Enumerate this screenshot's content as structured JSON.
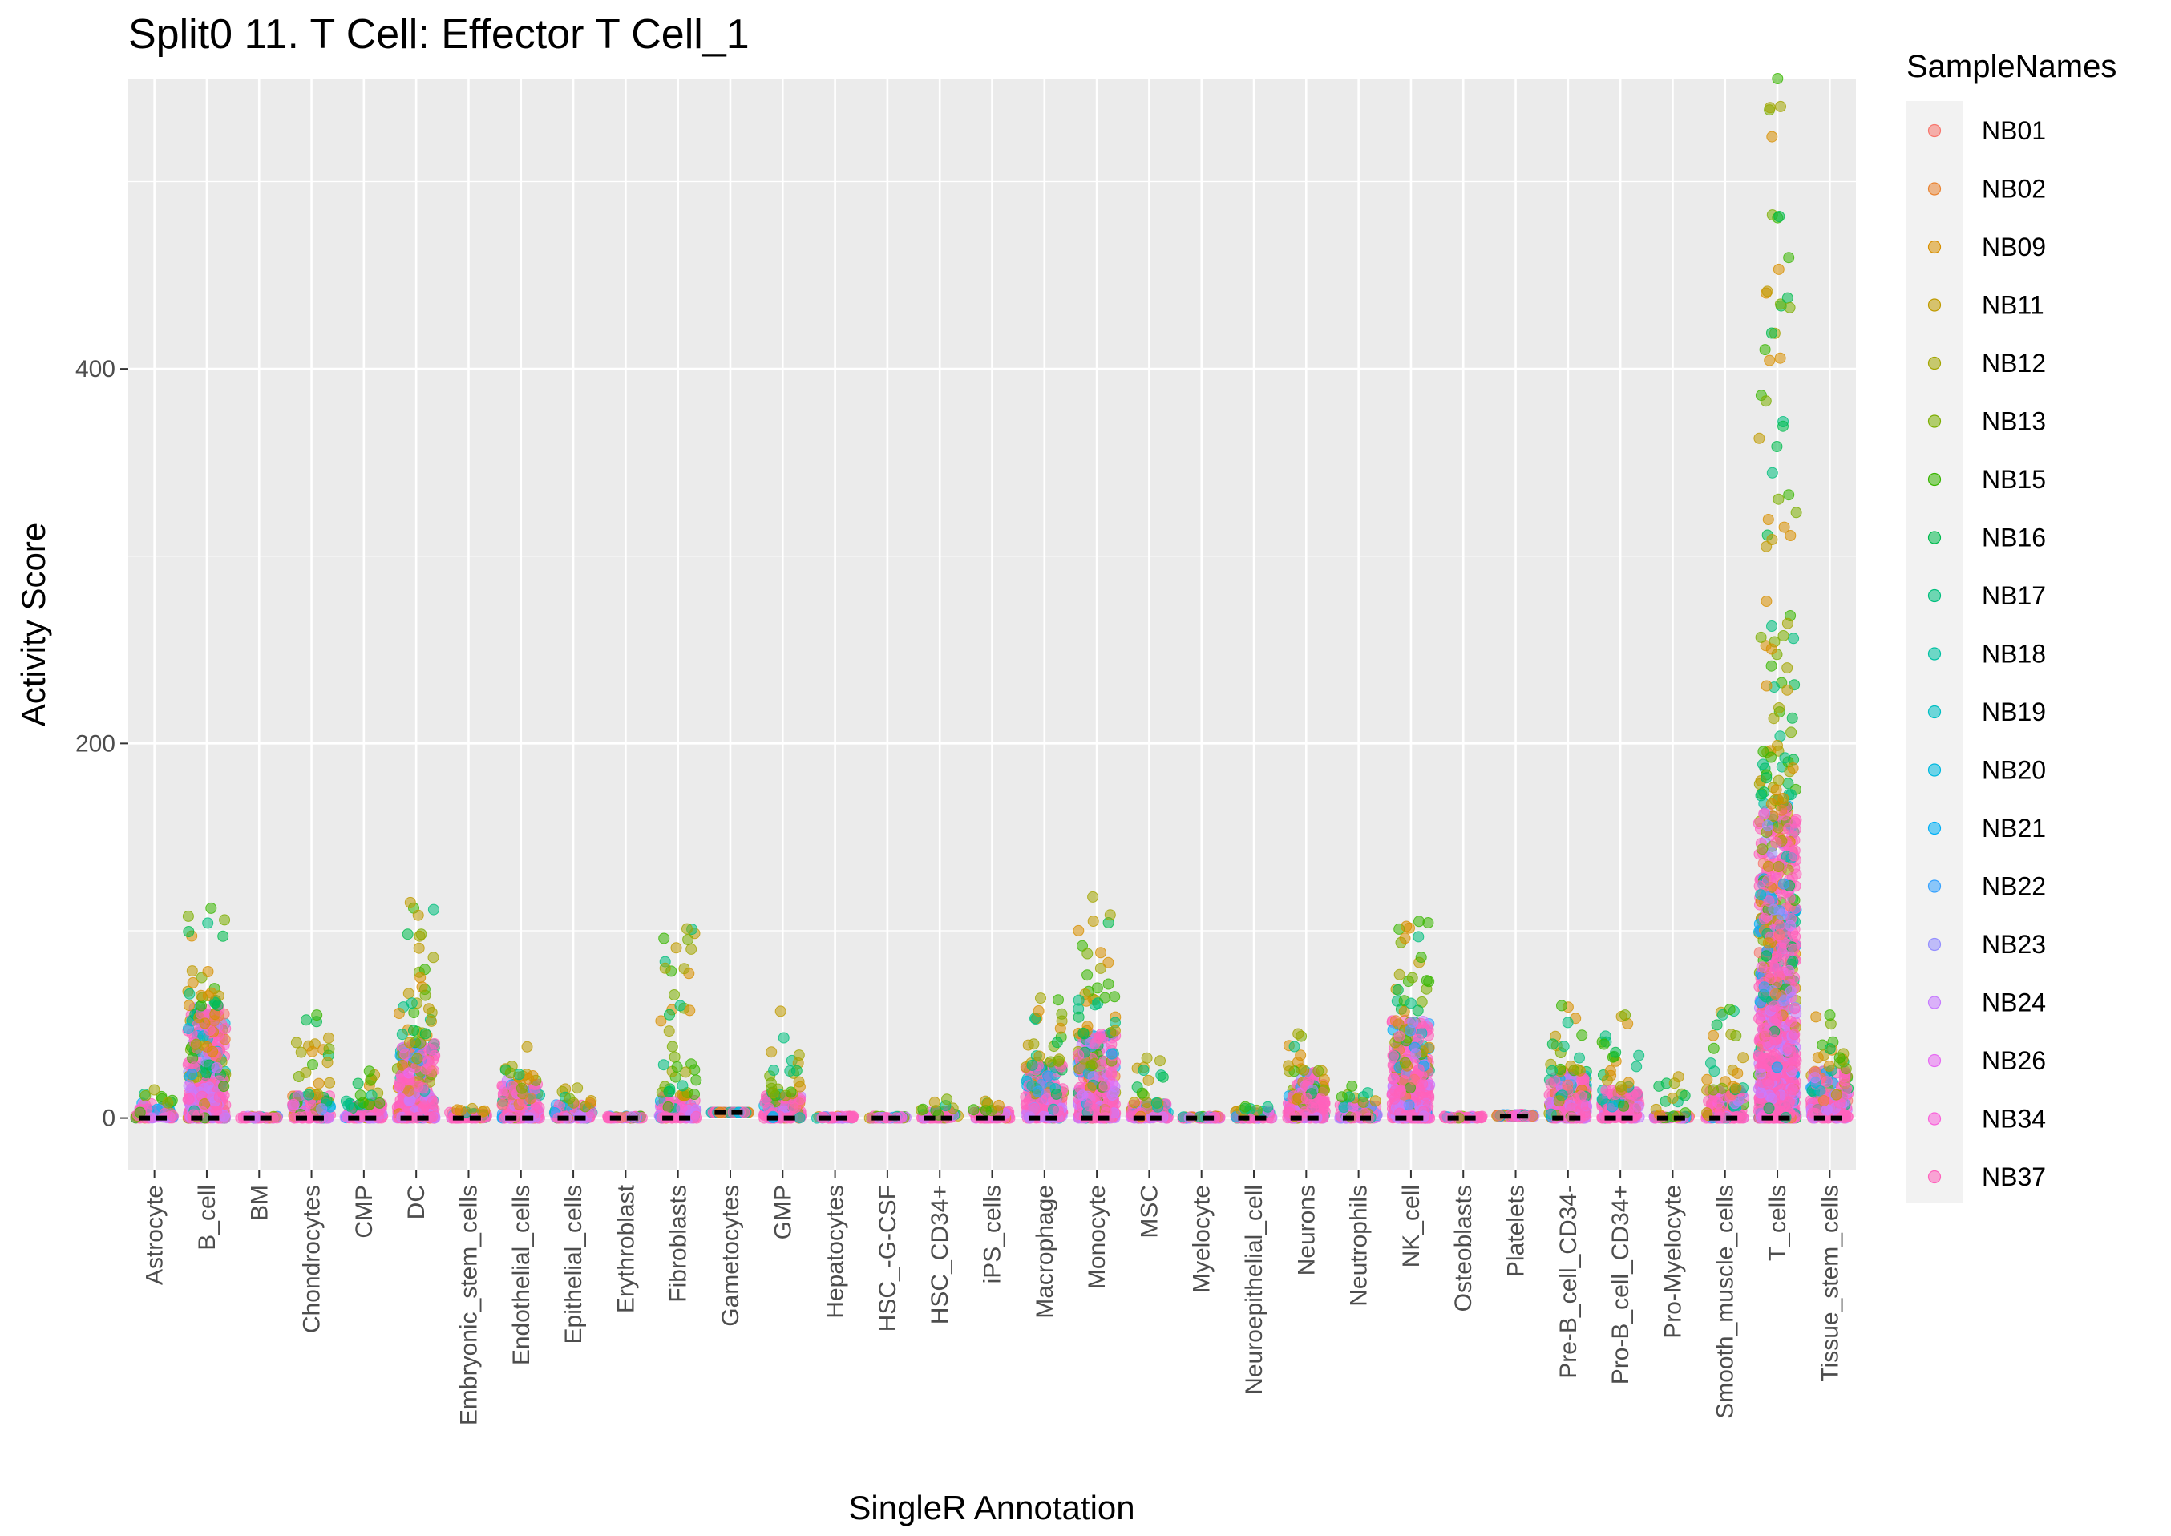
{
  "chart_data": {
    "type": "scatter",
    "subtype": "jittered strip plot with median markers",
    "title": "Split0 11. T Cell: Effector T Cell_1",
    "xlabel": "SingleR Annotation",
    "ylabel": "Activity Score",
    "ylim": [
      -28,
      555
    ],
    "yticks": [
      0,
      200,
      400
    ],
    "grid": true,
    "legend_title": "SampleNames",
    "legend_position": "right",
    "categories": [
      "Astrocyte",
      "B_cell",
      "BM",
      "Chondrocytes",
      "CMP",
      "DC",
      "Embryonic_stem_cells",
      "Endothelial_cells",
      "Epithelial_cells",
      "Erythroblast",
      "Fibroblasts",
      "Gametocytes",
      "GMP",
      "Hepatocytes",
      "HSC_-G-CSF",
      "HSC_CD34+",
      "iPS_cells",
      "Macrophage",
      "Monocyte",
      "MSC",
      "Myelocyte",
      "Neuroepithelial_cell",
      "Neurons",
      "Neutrophils",
      "NK_cell",
      "Osteoblasts",
      "Platelets",
      "Pre-B_cell_CD34-",
      "Pro-B_cell_CD34+",
      "Pro-Myelocyte",
      "Smooth_muscle_cells",
      "T_cells",
      "Tissue_stem_cells"
    ],
    "series": [
      {
        "name": "NB01",
        "color": "#F8766D"
      },
      {
        "name": "NB02",
        "color": "#EA8331"
      },
      {
        "name": "NB09",
        "color": "#D89000"
      },
      {
        "name": "NB11",
        "color": "#C09B00"
      },
      {
        "name": "NB12",
        "color": "#A3A500"
      },
      {
        "name": "NB13",
        "color": "#7CAE00"
      },
      {
        "name": "NB15",
        "color": "#39B600"
      },
      {
        "name": "NB16",
        "color": "#00BB4E"
      },
      {
        "name": "NB17",
        "color": "#00BF7D"
      },
      {
        "name": "NB18",
        "color": "#00C1A3"
      },
      {
        "name": "NB19",
        "color": "#00BFC4"
      },
      {
        "name": "NB20",
        "color": "#00BAE0"
      },
      {
        "name": "NB21",
        "color": "#00B0F6"
      },
      {
        "name": "NB22",
        "color": "#35A2FF"
      },
      {
        "name": "NB23",
        "color": "#9590FF"
      },
      {
        "name": "NB24",
        "color": "#C77CFF"
      },
      {
        "name": "NB26",
        "color": "#E76BF3"
      },
      {
        "name": "NB34",
        "color": "#FA62DB"
      },
      {
        "name": "NB37",
        "color": "#FF62BC"
      }
    ],
    "category_summary": [
      {
        "category": "Astrocyte",
        "median": 0,
        "max": 15,
        "dense_top": 8
      },
      {
        "category": "B_cell",
        "median": 0,
        "max": 112,
        "dense_top": 60
      },
      {
        "category": "BM",
        "median": 0,
        "max": 1,
        "dense_top": 1
      },
      {
        "category": "Chondrocytes",
        "median": 0,
        "max": 55,
        "dense_top": 12
      },
      {
        "category": "CMP",
        "median": 0,
        "max": 25,
        "dense_top": 8
      },
      {
        "category": "DC",
        "median": 0,
        "max": 115,
        "dense_top": 40
      },
      {
        "category": "Embryonic_stem_cells",
        "median": 0,
        "max": 5,
        "dense_top": 3
      },
      {
        "category": "Endothelial_cells",
        "median": 0,
        "max": 38,
        "dense_top": 20
      },
      {
        "category": "Epithelial_cells",
        "median": 0,
        "max": 16,
        "dense_top": 8
      },
      {
        "category": "Erythroblast",
        "median": 0,
        "max": 1,
        "dense_top": 1
      },
      {
        "category": "Fibroblasts",
        "median": 0,
        "max": 101,
        "dense_top": 12
      },
      {
        "category": "Gametocytes",
        "median": 3,
        "max": 3,
        "dense_top": 3
      },
      {
        "category": "GMP",
        "median": 0,
        "max": 57,
        "dense_top": 12
      },
      {
        "category": "Hepatocytes",
        "median": 0,
        "max": 1,
        "dense_top": 1
      },
      {
        "category": "HSC_-G-CSF",
        "median": 0,
        "max": 1,
        "dense_top": 1
      },
      {
        "category": "HSC_CD34+",
        "median": 0,
        "max": 10,
        "dense_top": 4
      },
      {
        "category": "iPS_cells",
        "median": 0,
        "max": 9,
        "dense_top": 4
      },
      {
        "category": "Macrophage",
        "median": 0,
        "max": 64,
        "dense_top": 30
      },
      {
        "category": "Monocyte",
        "median": 0,
        "max": 118,
        "dense_top": 45
      },
      {
        "category": "MSC",
        "median": 0,
        "max": 32,
        "dense_top": 8
      },
      {
        "category": "Myelocyte",
        "median": 0,
        "max": 1,
        "dense_top": 1
      },
      {
        "category": "Neuroepithelial_cell",
        "median": 0,
        "max": 6,
        "dense_top": 4
      },
      {
        "category": "Neurons",
        "median": 0,
        "max": 45,
        "dense_top": 25
      },
      {
        "category": "Neutrophils",
        "median": 0,
        "max": 17,
        "dense_top": 8
      },
      {
        "category": "NK_cell",
        "median": 0,
        "max": 105,
        "dense_top": 55
      },
      {
        "category": "Osteoblasts",
        "median": 0,
        "max": 1,
        "dense_top": 1
      },
      {
        "category": "Platelets",
        "median": 1,
        "max": 2,
        "dense_top": 2
      },
      {
        "category": "Pre-B_cell_CD34-",
        "median": 0,
        "max": 60,
        "dense_top": 25
      },
      {
        "category": "Pro-B_cell_CD34+",
        "median": 0,
        "max": 55,
        "dense_top": 15
      },
      {
        "category": "Pro-Myelocyte",
        "median": 0,
        "max": 22,
        "dense_top": 1
      },
      {
        "category": "Smooth_muscle_cells",
        "median": 0,
        "max": 58,
        "dense_top": 15
      },
      {
        "category": "T_cells",
        "median": 0,
        "max": 555,
        "dense_top": 170
      },
      {
        "category": "Tissue_stem_cells",
        "median": 0,
        "max": 55,
        "dense_top": 25
      }
    ]
  }
}
